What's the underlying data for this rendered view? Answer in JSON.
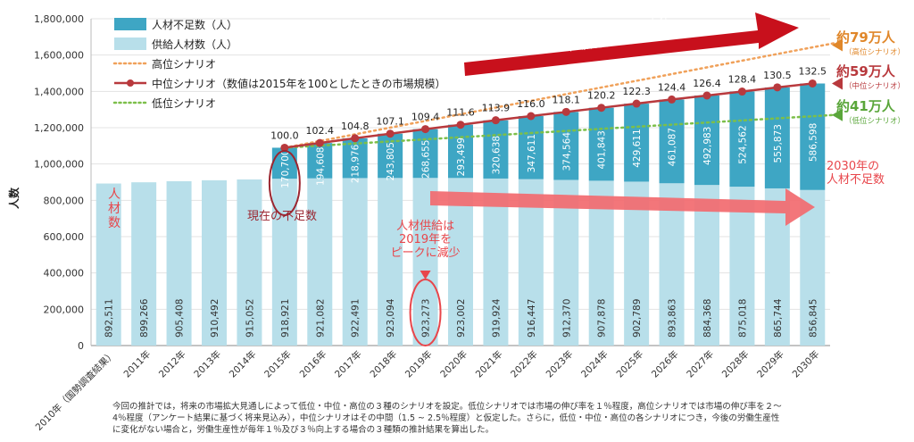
{
  "chart_data": {
    "type": "bar",
    "ylabel": "人数",
    "ylim": [
      0,
      1800000
    ],
    "yticks": [
      "0",
      "200,000",
      "400,000",
      "600,000",
      "800,000",
      "1,000,000",
      "1,200,000",
      "1,400,000",
      "1,600,000",
      "1,800,000"
    ],
    "categories": [
      "2010年（国勢調査結果）",
      "2011年",
      "2012年",
      "2013年",
      "2014年",
      "2015年",
      "2016年",
      "2017年",
      "2018年",
      "2019年",
      "2020年",
      "2021年",
      "2022年",
      "2023年",
      "2024年",
      "2025年",
      "2026年",
      "2027年",
      "2028年",
      "2029年",
      "2030年"
    ],
    "series": [
      {
        "name": "人材不足数（人）",
        "color": "#3ea6c4",
        "values": [
          null,
          null,
          null,
          null,
          null,
          170700,
          194608,
          218976,
          243805,
          268655,
          293499,
          320638,
          347611,
          374564,
          401843,
          429611,
          461087,
          492983,
          524562,
          555873,
          586598
        ],
        "labels": [
          "",
          "",
          "",
          "",
          "",
          "170,700",
          "194,608",
          "218,976",
          "243,805",
          "268,655",
          "293,499",
          "320,638",
          "347,611",
          "374,564",
          "401,843",
          "429,611",
          "461,087",
          "492,983",
          "524,562",
          "555,873",
          "586,598"
        ]
      },
      {
        "name": "供給人材数（人）",
        "color": "#b8dfea",
        "values": [
          892511,
          899266,
          905408,
          910492,
          915052,
          918921,
          921082,
          922491,
          923094,
          923273,
          923002,
          919924,
          916447,
          912370,
          907878,
          902789,
          893863,
          884368,
          875018,
          865744,
          856845
        ],
        "labels": [
          "892,511",
          "899,266",
          "905,408",
          "910,492",
          "915,052",
          "918,921",
          "921,082",
          "922,491",
          "923,094",
          "923,273",
          "923,002",
          "919,924",
          "916,447",
          "912,370",
          "907,878",
          "902,789",
          "893,863",
          "884,368",
          "875,018",
          "865,744",
          "856,845"
        ]
      }
    ],
    "lines": [
      {
        "name": "高位シナリオ",
        "color": "#f0a15a",
        "style": "dotted",
        "start": 2015,
        "end_value": 1665000
      },
      {
        "name": "中位シナリオ（数値は2015年を100としたときの市場規模）",
        "color": "#b8393d",
        "style": "solid-markers",
        "index": [
          100.0,
          102.4,
          104.8,
          107.1,
          109.4,
          111.6,
          113.9,
          116.0,
          118.1,
          120.2,
          122.3,
          124.4,
          126.4,
          128.4,
          130.5,
          132.5
        ],
        "index_labels": [
          "100.0",
          "102.4",
          "104.8",
          "107.1",
          "109.4",
          "111.6",
          "113.9",
          "116.0",
          "118.1",
          "120.2",
          "122.3",
          "124.4",
          "126.4",
          "128.4",
          "130.5",
          "132.5"
        ]
      },
      {
        "name": "低位シナリオ",
        "color": "#7cbf4a",
        "style": "dotted",
        "start": 2015,
        "end_value": 1270000
      }
    ],
    "legend_position": "top-left"
  },
  "annotations": {
    "left_vertical": [
      "人",
      "材",
      "数"
    ],
    "current_shortage": "現在の不足数",
    "supply_peak": [
      "人材供給は",
      "2019年を",
      "ピークに減少"
    ],
    "it_needs": [
      "ITニーズの拡大により",
      "市場規模は今後も拡大"
    ],
    "shortage_2030": [
      "2030年の",
      "人材不足数"
    ],
    "right_labels": [
      {
        "main": "約79万人",
        "sub": "（高位シナリオ）",
        "color": "#e0872a"
      },
      {
        "main": "約59万人",
        "sub": "（中位シナリオ）",
        "color": "#b8393d"
      },
      {
        "main": "約41万人",
        "sub": "（低位シナリオ）",
        "color": "#5aa63a"
      }
    ]
  },
  "note": [
    "今回の推計では，将来の市場拡大見通しによって低位・中位・高位の３種のシナリオを設定。低位シナリオでは市場の伸び率を１％程度，高位シナリオでは市場の伸び率を２～",
    "4％程度（アンケート結果に基づく将来見込み），中位シナリオはその中間（1.5 ~ 2.5％程度）と仮定した。さらに，低位・中位・高位の各シナリオにつき，今後の労働生産性",
    "に変化がない場合と，労働生産性が毎年１％及び３％向上する場合の３種類の推計結果を算出した。"
  ]
}
